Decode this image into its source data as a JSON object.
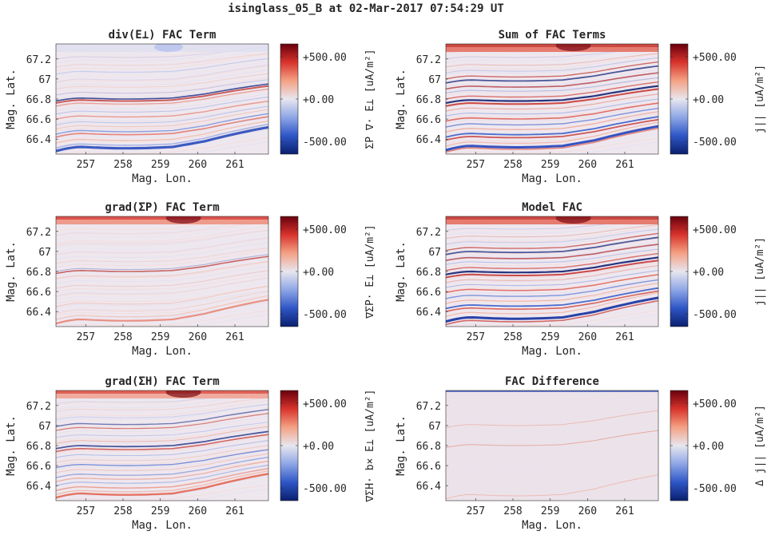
{
  "figure": {
    "title": "isinglass_05_B at 02-Mar-2017 07:54:29 UT"
  },
  "colorbar_scale": {
    "colors": [
      "#0a1f6e",
      "#2f56c6",
      "#8ea6e6",
      "#e8e6ee",
      "#f4a184",
      "#d8332c",
      "#67000d"
    ],
    "clim": [
      -650,
      650
    ],
    "ticks": [
      -500,
      0,
      500
    ],
    "tick_labels": [
      "-500.00",
      "+0.00",
      "+500.00"
    ]
  },
  "chart_data": [
    {
      "id": "div-e",
      "type": "heatmap",
      "title": "div(E⊥) FAC Term",
      "xlabel": "Mag. Lon.",
      "ylabel": "Mag. Lat.",
      "colorbar_label": "ΣP ∇· E⊥ [uA/m²]",
      "xlim": [
        256.2,
        261.9
      ],
      "ylim": [
        66.25,
        67.35
      ],
      "x_ticks": [
        257,
        258,
        259,
        260,
        261
      ],
      "y_ticks": [
        66.4,
        66.6,
        66.8,
        67,
        67.2
      ],
      "x_tick_labels": [
        "257",
        "258",
        "259",
        "260",
        "261"
      ],
      "y_tick_labels": [
        "66.4",
        "66.6",
        "66.8",
        "67",
        "67.2"
      ]
    },
    {
      "id": "sum",
      "type": "heatmap",
      "title": "Sum of FAC Terms",
      "xlabel": "Mag. Lon.",
      "ylabel": "Mag. Lat.",
      "colorbar_label": "j|| [uA/m²]",
      "xlim": [
        256.2,
        261.9
      ],
      "ylim": [
        66.25,
        67.35
      ],
      "x_ticks": [
        257,
        258,
        259,
        260,
        261
      ],
      "y_ticks": [
        66.4,
        66.6,
        66.8,
        67,
        67.2
      ],
      "x_tick_labels": [
        "257",
        "258",
        "259",
        "260",
        "261"
      ],
      "y_tick_labels": [
        "66.4",
        "66.6",
        "66.8",
        "67",
        "67.2"
      ]
    },
    {
      "id": "grad-sp",
      "type": "heatmap",
      "title": "grad(ΣP) FAC Term",
      "xlabel": "Mag. Lon.",
      "ylabel": "Mag. Lat.",
      "colorbar_label": "∇ΣP· E⊥ [uA/m²]",
      "xlim": [
        256.2,
        261.9
      ],
      "ylim": [
        66.25,
        67.35
      ],
      "x_ticks": [
        257,
        258,
        259,
        260,
        261
      ],
      "y_ticks": [
        66.4,
        66.6,
        66.8,
        67,
        67.2
      ],
      "x_tick_labels": [
        "257",
        "258",
        "259",
        "260",
        "261"
      ],
      "y_tick_labels": [
        "66.4",
        "66.6",
        "66.8",
        "67",
        "67.2"
      ]
    },
    {
      "id": "model",
      "type": "heatmap",
      "title": "Model FAC",
      "xlabel": "Mag. Lon.",
      "ylabel": "Mag. Lat.",
      "colorbar_label": "j|| [uA/m²]",
      "xlim": [
        256.2,
        261.9
      ],
      "ylim": [
        66.25,
        67.35
      ],
      "x_ticks": [
        257,
        258,
        259,
        260,
        261
      ],
      "y_ticks": [
        66.4,
        66.6,
        66.8,
        67,
        67.2
      ],
      "x_tick_labels": [
        "257",
        "258",
        "259",
        "260",
        "261"
      ],
      "y_tick_labels": [
        "66.4",
        "66.6",
        "66.8",
        "67",
        "67.2"
      ]
    },
    {
      "id": "grad-sh",
      "type": "heatmap",
      "title": "grad(ΣH) FAC Term",
      "xlabel": "Mag. Lon.",
      "ylabel": "Mag. Lat.",
      "colorbar_label": "∇ΣH· b× E⊥ [uA/m²]",
      "xlim": [
        256.2,
        261.9
      ],
      "ylim": [
        66.25,
        67.35
      ],
      "x_ticks": [
        257,
        258,
        259,
        260,
        261
      ],
      "y_ticks": [
        66.4,
        66.6,
        66.8,
        67,
        67.2
      ],
      "x_tick_labels": [
        "257",
        "258",
        "259",
        "260",
        "261"
      ],
      "y_tick_labels": [
        "66.4",
        "66.6",
        "66.8",
        "67",
        "67.2"
      ]
    },
    {
      "id": "diff",
      "type": "heatmap",
      "title": "FAC Difference",
      "xlabel": "Mag. Lon.",
      "ylabel": "Mag. Lat.",
      "colorbar_label": "Δ j|| [uA/m²]",
      "xlim": [
        256.2,
        261.9
      ],
      "ylim": [
        66.25,
        67.35
      ],
      "x_ticks": [
        257,
        258,
        259,
        260,
        261
      ],
      "y_ticks": [
        66.4,
        66.6,
        66.8,
        67,
        67.2
      ],
      "x_tick_labels": [
        "257",
        "258",
        "259",
        "260",
        "261"
      ],
      "y_tick_labels": [
        "66.4",
        "66.6",
        "66.8",
        "67",
        "67.2"
      ]
    }
  ]
}
